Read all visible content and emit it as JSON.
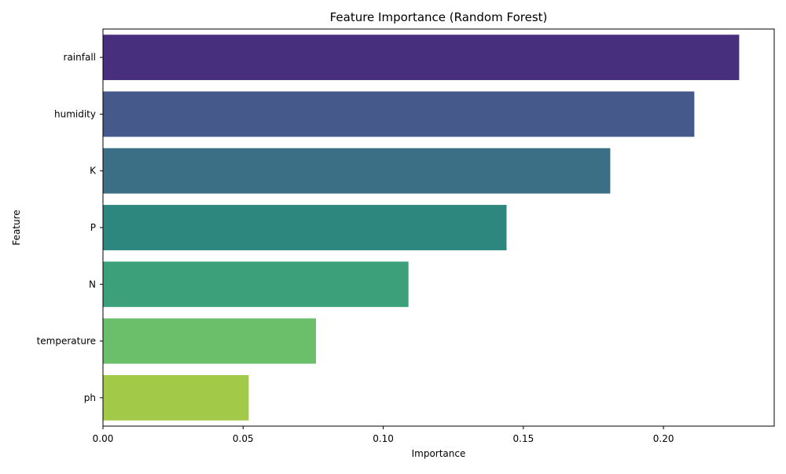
{
  "chart_data": {
    "type": "bar",
    "orientation": "horizontal",
    "title": "Feature Importance (Random Forest)",
    "xlabel": "Importance",
    "ylabel": "Feature",
    "categories": [
      "rainfall",
      "humidity",
      "K",
      "P",
      "N",
      "temperature",
      "ph"
    ],
    "values": [
      0.227,
      0.211,
      0.181,
      0.144,
      0.109,
      0.076,
      0.052
    ],
    "colors": [
      "#472f7d",
      "#46598b",
      "#3b6f86",
      "#2e877f",
      "#3ca17b",
      "#6bbf6a",
      "#a3c948"
    ],
    "xlim": [
      0,
      0.2395
    ],
    "xticks": [
      0.0,
      0.05,
      0.1,
      0.15,
      0.2
    ],
    "xtick_labels": [
      "0.00",
      "0.05",
      "0.10",
      "0.15",
      "0.20"
    ],
    "grid": false,
    "legend": "none"
  }
}
